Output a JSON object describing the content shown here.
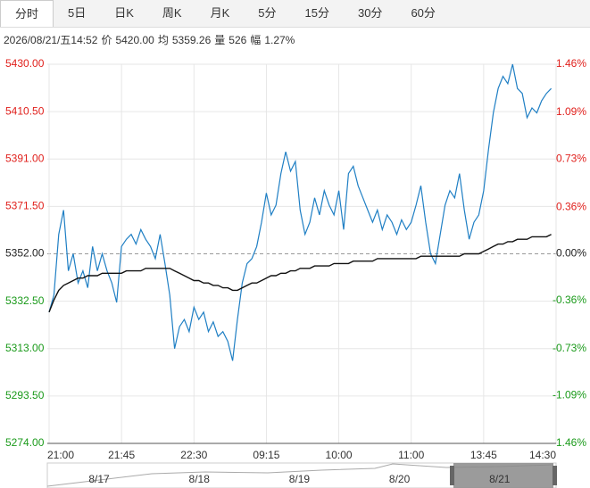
{
  "tabs": [
    "分时",
    "5日",
    "日K",
    "周K",
    "月K",
    "5分",
    "15分",
    "30分",
    "60分"
  ],
  "active_tab": 0,
  "info": [
    "2026/08/21/五14:52",
    "价",
    "5420.00",
    "均",
    "5359.26",
    "量",
    "526",
    "幅",
    "1.27%"
  ],
  "chart_data": {
    "type": "line",
    "series": [
      {
        "name": "价",
        "color": "#1f7fc4",
        "values": [
          5328,
          5335,
          5360,
          5370,
          5345,
          5352,
          5340,
          5345,
          5338,
          5355,
          5345,
          5352,
          5345,
          5340,
          5332,
          5355,
          5358,
          5360,
          5356,
          5362,
          5358,
          5355,
          5350,
          5360,
          5348,
          5335,
          5313,
          5322,
          5325,
          5320,
          5330,
          5325,
          5328,
          5320,
          5324,
          5318,
          5320,
          5316,
          5308,
          5325,
          5340,
          5348,
          5350,
          5355,
          5365,
          5377,
          5368,
          5372,
          5385,
          5394,
          5386,
          5390,
          5370,
          5360,
          5365,
          5375,
          5368,
          5378,
          5372,
          5368,
          5378,
          5362,
          5385,
          5388,
          5380,
          5375,
          5370,
          5365,
          5370,
          5362,
          5368,
          5365,
          5360,
          5366,
          5362,
          5365,
          5372,
          5380,
          5365,
          5352,
          5348,
          5360,
          5372,
          5378,
          5375,
          5385,
          5370,
          5358,
          5365,
          5368,
          5378,
          5395,
          5410,
          5420,
          5425,
          5422,
          5430,
          5420,
          5418,
          5408,
          5412,
          5410,
          5415,
          5418,
          5420
        ]
      },
      {
        "name": "均",
        "color": "#111111",
        "values": [
          5328,
          5333,
          5337,
          5339,
          5340,
          5341,
          5342,
          5342,
          5343,
          5343,
          5343,
          5344,
          5344,
          5344,
          5344,
          5344,
          5345,
          5345,
          5345,
          5345,
          5346,
          5346,
          5346,
          5346,
          5346,
          5346,
          5345,
          5344,
          5343,
          5342,
          5341,
          5341,
          5340,
          5340,
          5339,
          5339,
          5338,
          5338,
          5337,
          5337,
          5338,
          5339,
          5340,
          5340,
          5341,
          5342,
          5343,
          5343,
          5344,
          5344,
          5345,
          5345,
          5346,
          5346,
          5346,
          5347,
          5347,
          5347,
          5347,
          5348,
          5348,
          5348,
          5348,
          5349,
          5349,
          5349,
          5349,
          5349,
          5350,
          5350,
          5350,
          5350,
          5350,
          5350,
          5350,
          5350,
          5350,
          5351,
          5351,
          5351,
          5351,
          5351,
          5351,
          5351,
          5351,
          5351,
          5352,
          5352,
          5352,
          5352,
          5353,
          5354,
          5355,
          5356,
          5356,
          5357,
          5357,
          5358,
          5358,
          5358,
          5359,
          5359,
          5359,
          5359,
          5360
        ]
      }
    ],
    "xlim": [
      0,
      105
    ],
    "xticks": [
      {
        "value": 0,
        "label": "21:00"
      },
      {
        "value": 15,
        "label": "21:45"
      },
      {
        "value": 30,
        "label": "22:30"
      },
      {
        "value": 45,
        "label": "09:15"
      },
      {
        "value": 60,
        "label": "10:00"
      },
      {
        "value": 75,
        "label": "11:00"
      },
      {
        "value": 90,
        "label": "13:45"
      },
      {
        "value": 105,
        "label": "14:30"
      }
    ],
    "ylim": [
      5274,
      5430
    ],
    "yticks": [
      {
        "value": 5430,
        "label": "5430.00"
      },
      {
        "value": 5410.5,
        "label": "5410.50"
      },
      {
        "value": 5391,
        "label": "5391.00"
      },
      {
        "value": 5371.5,
        "label": "5371.50"
      },
      {
        "value": 5352,
        "label": "5352.00"
      },
      {
        "value": 5332.5,
        "label": "5332.50"
      },
      {
        "value": 5313,
        "label": "5313.00"
      },
      {
        "value": 5293.5,
        "label": "5293.50"
      },
      {
        "value": 5274,
        "label": "5274.00"
      }
    ],
    "y2lim": [
      -1.46,
      1.46
    ],
    "y2ticks": [
      {
        "value": 1.46,
        "label": "1.46%"
      },
      {
        "value": 1.09,
        "label": "1.09%"
      },
      {
        "value": 0.73,
        "label": "0.73%"
      },
      {
        "value": 0.36,
        "label": "0.36%"
      },
      {
        "value": 0,
        "label": "0.00%"
      },
      {
        "value": -0.36,
        "label": "-0.36%"
      },
      {
        "value": -0.73,
        "label": "-0.73%"
      },
      {
        "value": -1.09,
        "label": "-1.09%"
      },
      {
        "value": -1.46,
        "label": "-1.46%"
      }
    ],
    "baseline": 5352,
    "up_color": "#e0201c",
    "down_color": "#1a9a1a",
    "flat_color": "#222222",
    "grid": true,
    "navigator_labels": [
      "8/17",
      "8/18",
      "8/19",
      "8/20",
      "8/21"
    ]
  }
}
